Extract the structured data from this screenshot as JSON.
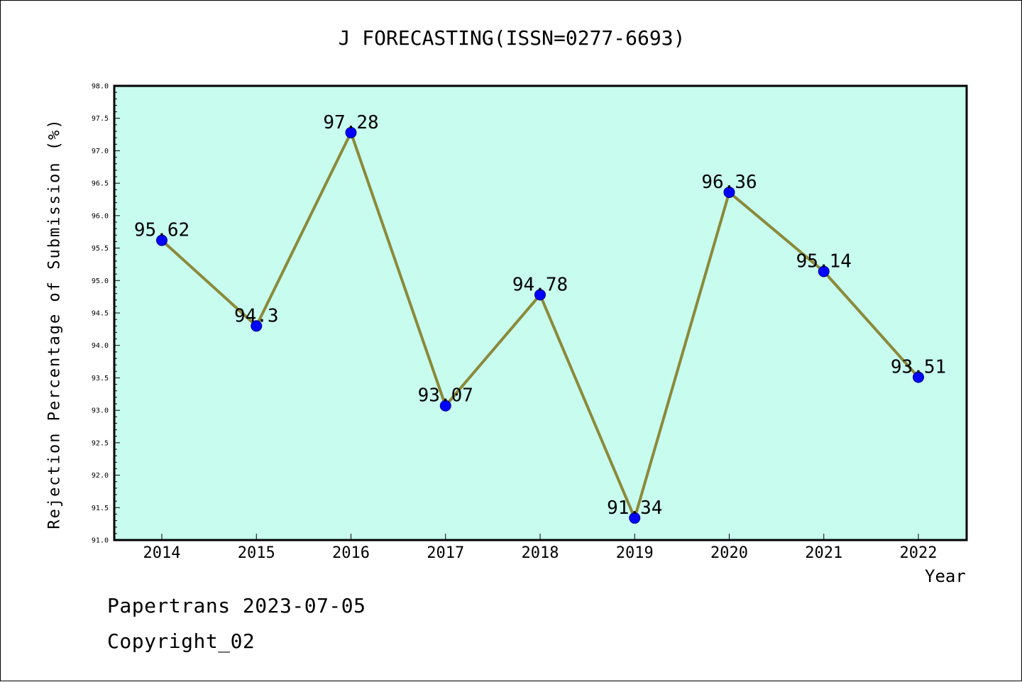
{
  "chart_data": {
    "type": "line",
    "title": "J FORECASTING(ISSN=0277-6693)",
    "xlabel": "Year",
    "ylabel": "Rejection Percentage of Submission (%)",
    "categories": [
      "2014",
      "2015",
      "2016",
      "2017",
      "2018",
      "2019",
      "2020",
      "2021",
      "2022"
    ],
    "values": [
      95.62,
      94.3,
      97.28,
      93.07,
      94.78,
      91.34,
      96.36,
      95.14,
      93.51
    ],
    "data_labels": [
      "95.62",
      "94.3",
      "97.28",
      "93.07",
      "94.78",
      "91.34",
      "96.36",
      "95.14",
      "93.51"
    ],
    "ylim": [
      91.0,
      98.0
    ],
    "yticks": [
      "91.0",
      "91.5",
      "92.0",
      "92.5",
      "93.0",
      "93.5",
      "94.0",
      "94.5",
      "95.0",
      "95.5",
      "96.0",
      "96.5",
      "97.0",
      "97.5",
      "98.0"
    ],
    "grid": false,
    "colors": {
      "plot_background": "#c8fcef",
      "line": "#8b8a3a",
      "marker_fill": "#0000ff",
      "marker_edge": "#00008b"
    }
  },
  "footer": {
    "line1": "Papertrans 2023-07-05",
    "line2": "Copyright_02"
  }
}
